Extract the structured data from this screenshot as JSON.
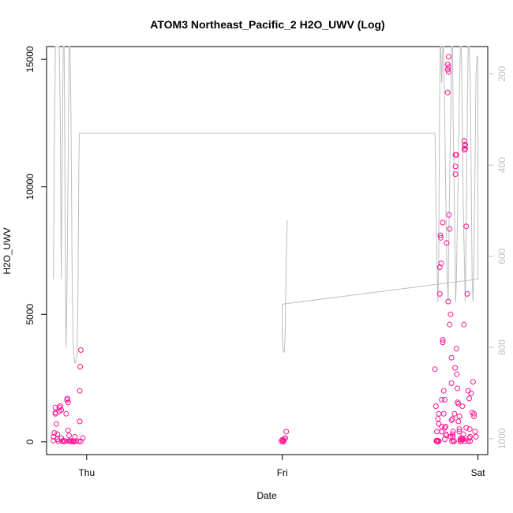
{
  "chart_data": {
    "type": "scatter",
    "title": "ATOM3 Northeast_Pacific_2 H2O_UWV (Log)",
    "xlabel": "Date",
    "ylabel": "H2O_UWV",
    "x_ticks": [
      {
        "label": "Thu",
        "value": 0
      },
      {
        "label": "Fri",
        "value": 1
      },
      {
        "label": "Sat",
        "value": 2
      }
    ],
    "xlim": [
      -0.205,
      2.05
    ],
    "ylim": [
      -500,
      15500
    ],
    "y_ticks": [
      0,
      5000,
      10000,
      15000
    ],
    "y2_label": "",
    "y2_ticks": [
      200,
      400,
      600,
      800,
      1000
    ],
    "y2lim": [
      1035,
      140
    ],
    "point_color": "#ff1493",
    "line_color": "#bebebe",
    "grid": false,
    "series": [
      {
        "type": "scatter",
        "points": [
          [
            -0.17,
            50
          ],
          [
            -0.17,
            200
          ],
          [
            -0.165,
            350
          ],
          [
            -0.16,
            1100
          ],
          [
            -0.16,
            1150
          ],
          [
            -0.16,
            1350
          ],
          [
            -0.155,
            700
          ],
          [
            -0.15,
            100
          ],
          [
            -0.15,
            300
          ],
          [
            -0.145,
            30
          ],
          [
            -0.14,
            1200
          ],
          [
            -0.14,
            1350
          ],
          [
            -0.135,
            1400
          ],
          [
            -0.13,
            1250
          ],
          [
            -0.13,
            150
          ],
          [
            -0.125,
            20
          ],
          [
            -0.12,
            50
          ],
          [
            -0.115,
            20
          ],
          [
            -0.11,
            30
          ],
          [
            -0.105,
            1100
          ],
          [
            -0.1,
            1650
          ],
          [
            -0.098,
            1700
          ],
          [
            -0.095,
            1550
          ],
          [
            -0.095,
            450
          ],
          [
            -0.09,
            250
          ],
          [
            -0.09,
            30
          ],
          [
            -0.085,
            20
          ],
          [
            -0.08,
            30
          ],
          [
            -0.075,
            20
          ],
          [
            -0.07,
            30
          ],
          [
            -0.065,
            10
          ],
          [
            -0.06,
            200
          ],
          [
            -0.055,
            30
          ],
          [
            -0.04,
            20
          ],
          [
            -0.035,
            800
          ],
          [
            -0.035,
            2000
          ],
          [
            -0.033,
            2950
          ],
          [
            -0.03,
            3600
          ],
          [
            -0.03,
            20
          ],
          [
            -0.02,
            150
          ],
          [
            0.995,
            30
          ],
          [
            1.0,
            80
          ],
          [
            1.003,
            20
          ],
          [
            1.006,
            50
          ],
          [
            1.01,
            100
          ],
          [
            1.015,
            150
          ],
          [
            1.02,
            400
          ],
          [
            1.005,
            10
          ]
        ]
      },
      {
        "type": "scatter",
        "points": [
          [
            1.78,
            2850
          ],
          [
            1.785,
            1400
          ],
          [
            1.79,
            400
          ],
          [
            1.79,
            50
          ],
          [
            1.795,
            50
          ],
          [
            1.8,
            30
          ],
          [
            1.8,
            1100
          ],
          [
            1.805,
            5800
          ],
          [
            1.805,
            6850
          ],
          [
            1.808,
            8100
          ],
          [
            1.81,
            8000
          ],
          [
            1.812,
            7000
          ],
          [
            1.815,
            1650
          ],
          [
            1.815,
            400
          ],
          [
            1.815,
            600
          ],
          [
            1.82,
            3900
          ],
          [
            1.82,
            4000
          ],
          [
            1.82,
            8600
          ],
          [
            1.825,
            2000
          ],
          [
            1.825,
            1100
          ],
          [
            1.83,
            1650
          ],
          [
            1.83,
            550
          ],
          [
            1.835,
            300
          ],
          [
            1.84,
            7800
          ],
          [
            1.845,
            14800
          ],
          [
            1.845,
            13700
          ],
          [
            1.845,
            14600
          ],
          [
            1.848,
            5500
          ],
          [
            1.85,
            15100
          ],
          [
            1.85,
            14700
          ],
          [
            1.85,
            14500
          ],
          [
            1.852,
            8900
          ],
          [
            1.855,
            8350
          ],
          [
            1.855,
            4600
          ],
          [
            1.86,
            5000
          ],
          [
            1.865,
            2300
          ],
          [
            1.865,
            850
          ],
          [
            1.87,
            900
          ],
          [
            1.87,
            300
          ],
          [
            1.875,
            50
          ],
          [
            1.878,
            20
          ],
          [
            1.88,
            1100
          ],
          [
            1.885,
            10500
          ],
          [
            1.885,
            10800
          ],
          [
            1.885,
            11250
          ],
          [
            1.89,
            11250
          ],
          [
            1.89,
            3650
          ],
          [
            1.892,
            2650
          ],
          [
            1.895,
            2100
          ],
          [
            1.895,
            1550
          ],
          [
            1.9,
            1500
          ],
          [
            1.9,
            800
          ],
          [
            1.905,
            1000
          ],
          [
            1.905,
            500
          ],
          [
            1.91,
            100
          ],
          [
            1.91,
            20
          ],
          [
            1.915,
            40
          ],
          [
            1.92,
            1400
          ],
          [
            1.92,
            100
          ],
          [
            1.925,
            300
          ],
          [
            1.928,
            4600
          ],
          [
            1.93,
            11800
          ],
          [
            1.932,
            11600
          ],
          [
            1.935,
            11500
          ],
          [
            1.935,
            11650
          ],
          [
            1.93,
            11450
          ],
          [
            1.94,
            8450
          ],
          [
            1.945,
            5800
          ],
          [
            1.95,
            2000
          ],
          [
            1.955,
            1700
          ],
          [
            1.958,
            500
          ],
          [
            1.96,
            200
          ],
          [
            1.965,
            1900
          ],
          [
            1.97,
            1150
          ],
          [
            1.975,
            2350
          ],
          [
            1.98,
            1100
          ],
          [
            1.98,
            1000
          ],
          [
            1.985,
            400
          ],
          [
            1.99,
            200
          ],
          [
            1.96,
            30
          ],
          [
            1.93,
            20
          ],
          [
            1.925,
            100
          ],
          [
            1.915,
            150
          ],
          [
            1.86,
            200
          ],
          [
            1.84,
            250
          ],
          [
            1.83,
            100
          ],
          [
            1.8,
            700
          ],
          [
            1.795,
            900
          ],
          [
            1.787,
            30
          ],
          [
            1.795,
            10
          ],
          [
            1.835,
            600
          ],
          [
            1.865,
            3300
          ],
          [
            1.872,
            200
          ],
          [
            1.94,
            550
          ],
          [
            1.95,
            30
          ],
          [
            1.955,
            150
          ],
          [
            1.905,
            400
          ],
          [
            1.883,
            2900
          ],
          [
            1.867,
            20
          ],
          [
            1.873,
            400
          ]
        ]
      },
      {
        "type": "line",
        "axis": "right",
        "segments": [
          [
            [
              -0.17,
              650
            ],
            [
              -0.165,
              350
            ],
            [
              -0.16,
              140
            ],
            [
              -0.14,
              140
            ],
            [
              -0.135,
              300
            ],
            [
              -0.13,
              650
            ],
            [
              -0.125,
              400
            ],
            [
              -0.12,
              140
            ],
            [
              -0.115,
              140
            ],
            [
              -0.11,
              500
            ],
            [
              -0.107,
              750
            ],
            [
              -0.105,
              800
            ],
            [
              -0.1,
              650
            ],
            [
              -0.095,
              400
            ],
            [
              -0.09,
              140
            ],
            [
              -0.085,
              140
            ],
            [
              -0.08,
              300
            ],
            [
              -0.075,
              600
            ],
            [
              -0.07,
              780
            ],
            [
              -0.065,
              820
            ],
            [
              -0.06,
              835
            ],
            [
              -0.055,
              830
            ],
            [
              -0.05,
              820
            ],
            [
              -0.045,
              700
            ],
            [
              -0.04,
              400
            ],
            [
              -0.037,
              330
            ],
            [
              1.78,
              330
            ],
            [
              1.785,
              450
            ],
            [
              1.79,
              600
            ],
            [
              1.795,
              700
            ],
            [
              1.8,
              600
            ],
            [
              1.803,
              300
            ],
            [
              1.807,
              140
            ],
            [
              1.81,
              140
            ],
            [
              1.815,
              220
            ],
            [
              1.82,
              140
            ],
            [
              1.825,
              140
            ],
            [
              1.83,
              300
            ],
            [
              1.835,
              450
            ],
            [
              1.84,
              600
            ],
            [
              1.843,
              650
            ],
            [
              1.848,
              700
            ],
            [
              1.85,
              600
            ],
            [
              1.86,
              300
            ],
            [
              1.865,
              140
            ],
            [
              1.87,
              140
            ],
            [
              1.873,
              300
            ],
            [
              1.878,
              450
            ],
            [
              1.883,
              600
            ],
            [
              1.886,
              700
            ],
            [
              1.89,
              650
            ],
            [
              1.9,
              400
            ],
            [
              1.905,
              250
            ],
            [
              1.91,
              140
            ],
            [
              1.915,
              140
            ],
            [
              1.92,
              300
            ],
            [
              1.925,
              500
            ],
            [
              1.93,
              600
            ],
            [
              1.935,
              700
            ],
            [
              1.94,
              550
            ],
            [
              1.945,
              300
            ],
            [
              1.95,
              140
            ],
            [
              1.955,
              140
            ],
            [
              1.96,
              200
            ],
            [
              1.965,
              400
            ],
            [
              1.97,
              650
            ],
            [
              1.975,
              700
            ],
            [
              1.98,
              600
            ],
            [
              1.985,
              400
            ],
            [
              1.99,
              200
            ],
            [
              1.995,
              160
            ],
            [
              2.0,
              165
            ]
          ],
          [
            [
              2.0,
              165
            ],
            [
              2.0,
              650
            ],
            [
              1.0,
              705
            ],
            [
              1.0,
              790
            ],
            [
              1.005,
              810
            ],
            [
              1.01,
              810
            ],
            [
              1.015,
              760
            ],
            [
              1.02,
              600
            ],
            [
              1.025,
              520
            ]
          ]
        ]
      }
    ]
  }
}
